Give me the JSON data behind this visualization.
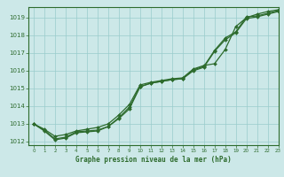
{
  "title": "Graphe pression niveau de la mer (hPa)",
  "bg_color": "#cce8e8",
  "line_color": "#2d6b2d",
  "grid_color": "#99cccc",
  "xlim": [
    -0.5,
    23
  ],
  "ylim": [
    1011.8,
    1019.6
  ],
  "yticks": [
    1012,
    1013,
    1014,
    1015,
    1016,
    1017,
    1018,
    1019
  ],
  "xticks": [
    0,
    1,
    2,
    3,
    4,
    5,
    6,
    7,
    8,
    9,
    10,
    11,
    12,
    13,
    14,
    15,
    16,
    17,
    18,
    19,
    20,
    21,
    22,
    23
  ],
  "series": [
    [
      1013.0,
      1012.7,
      1012.3,
      1012.4,
      1012.6,
      1012.7,
      1012.8,
      1013.0,
      1013.5,
      1014.1,
      1015.2,
      1015.35,
      1015.45,
      1015.55,
      1015.6,
      1016.1,
      1016.3,
      1016.4,
      1017.2,
      1018.5,
      1019.0,
      1019.2,
      1019.35,
      1019.45
    ],
    [
      1013.0,
      1012.65,
      1012.15,
      1012.25,
      1012.55,
      1012.6,
      1012.65,
      1012.85,
      1013.35,
      1013.95,
      1015.1,
      1015.3,
      1015.4,
      1015.5,
      1015.55,
      1016.05,
      1016.25,
      1017.15,
      1017.85,
      1018.2,
      1019.05,
      1019.1,
      1019.25,
      1019.4
    ],
    [
      1013.0,
      1012.6,
      1012.1,
      1012.2,
      1012.5,
      1012.55,
      1012.6,
      1012.85,
      1013.3,
      1013.85,
      1015.1,
      1015.3,
      1015.4,
      1015.5,
      1015.55,
      1016.0,
      1016.2,
      1017.1,
      1017.75,
      1018.15,
      1018.95,
      1019.05,
      1019.2,
      1019.35
    ]
  ]
}
